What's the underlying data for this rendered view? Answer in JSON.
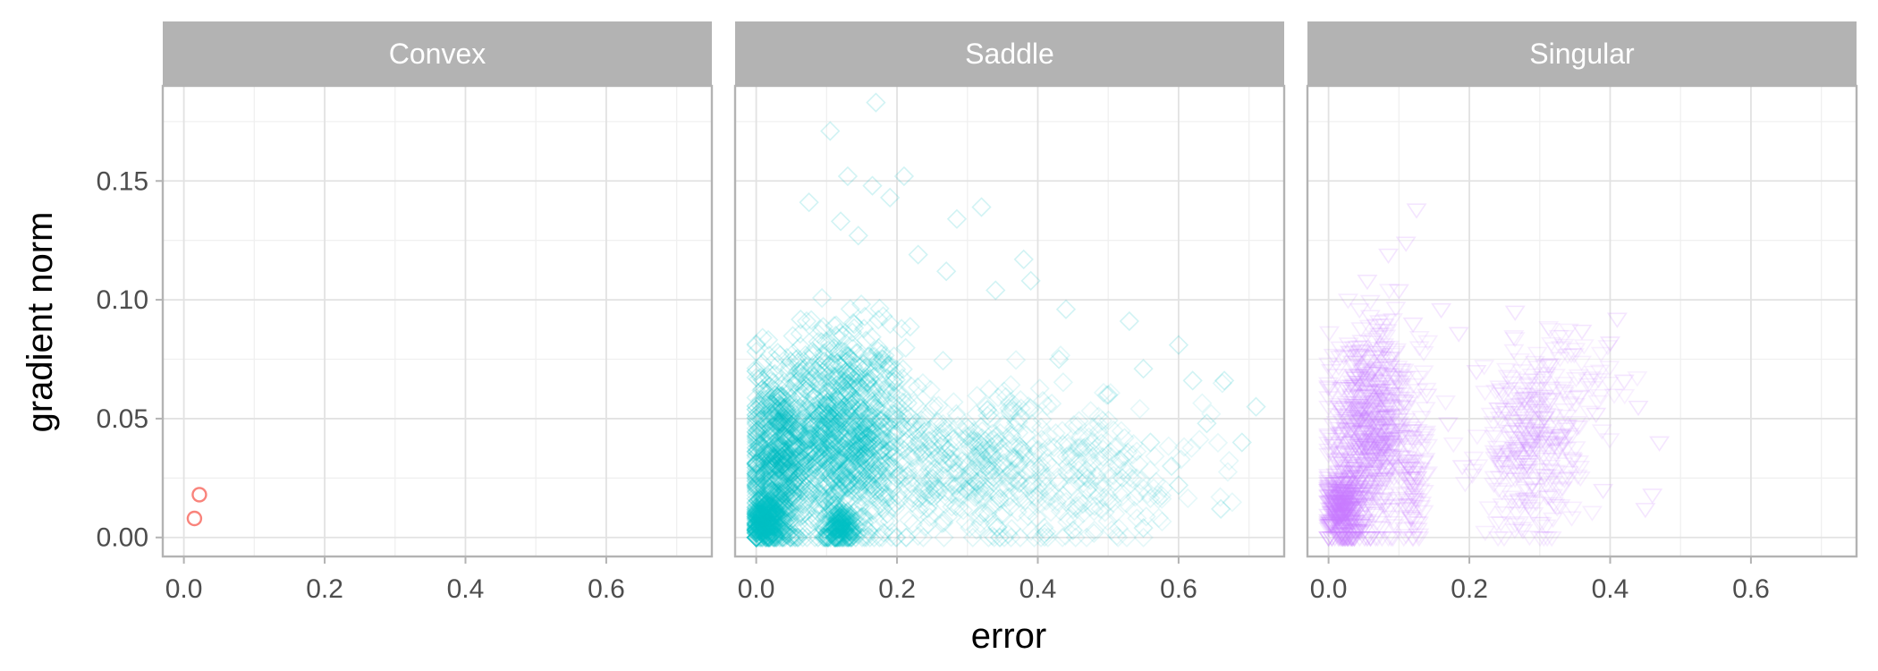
{
  "chart_data": {
    "type": "scatter",
    "xlabel": "error",
    "ylabel": "gradient norm",
    "xlim": [
      -0.03,
      0.75
    ],
    "ylim": [
      -0.008,
      0.19
    ],
    "x_ticks": [
      "0.0",
      "0.2",
      "0.4",
      "0.6"
    ],
    "x_tick_values": [
      0,
      0.2,
      0.4,
      0.6
    ],
    "y_ticks": [
      "0.00",
      "0.05",
      "0.10",
      "0.15"
    ],
    "y_tick_values": [
      0,
      0.05,
      0.1,
      0.15
    ],
    "grid": true,
    "panels": [
      {
        "label": "Convex",
        "color": "#F8766D",
        "marker": "circle",
        "point_opacity": 0.9,
        "points": [
          [
            0.015,
            0.008
          ],
          [
            0.022,
            0.018
          ]
        ],
        "clouds": []
      },
      {
        "label": "Saddle",
        "color": "#00BFC4",
        "marker": "diamond",
        "point_opacity": 0.18,
        "points": [
          [
            0.17,
            0.183
          ],
          [
            0.105,
            0.171
          ],
          [
            0.13,
            0.152
          ],
          [
            0.165,
            0.148
          ],
          [
            0.21,
            0.152
          ],
          [
            0.19,
            0.143
          ],
          [
            0.075,
            0.141
          ],
          [
            0.32,
            0.139
          ],
          [
            0.285,
            0.134
          ],
          [
            0.12,
            0.133
          ],
          [
            0.145,
            0.127
          ],
          [
            0.38,
            0.117
          ],
          [
            0.23,
            0.119
          ],
          [
            0.27,
            0.112
          ],
          [
            0.39,
            0.108
          ],
          [
            0.34,
            0.104
          ],
          [
            0.44,
            0.096
          ],
          [
            0.53,
            0.091
          ],
          [
            0.6,
            0.081
          ],
          [
            0.55,
            0.071
          ],
          [
            0.62,
            0.066
          ],
          [
            0.665,
            0.066
          ],
          [
            0.71,
            0.055
          ],
          [
            0.64,
            0.048
          ],
          [
            0.69,
            0.04
          ],
          [
            0.56,
            0.04
          ],
          [
            0.59,
            0.03
          ],
          [
            0.52,
            0.025
          ],
          [
            0.47,
            0.02
          ],
          [
            0.66,
            0.012
          ],
          [
            0.55,
            0.004
          ],
          [
            0.45,
            0.003
          ],
          [
            0.6,
            0.022
          ],
          [
            0.5,
            0.06
          ],
          [
            0.43,
            0.075
          ]
        ],
        "clouds": [
          {
            "cx": 0.1,
            "cy": 0.045,
            "sx": 0.055,
            "sy": 0.022,
            "n": 700,
            "opacity": 0.16
          },
          {
            "cx": 0.03,
            "cy": 0.03,
            "sx": 0.02,
            "sy": 0.018,
            "n": 500,
            "opacity": 0.18
          },
          {
            "cx": 0.13,
            "cy": 0.04,
            "sx": 0.04,
            "sy": 0.02,
            "n": 500,
            "opacity": 0.16
          },
          {
            "cx": 0.012,
            "cy": 0.007,
            "sx": 0.01,
            "sy": 0.005,
            "n": 300,
            "opacity": 0.22
          },
          {
            "cx": 0.12,
            "cy": 0.004,
            "sx": 0.012,
            "sy": 0.004,
            "n": 150,
            "opacity": 0.22
          },
          {
            "cx": 0.3,
            "cy": 0.03,
            "sx": 0.1,
            "sy": 0.016,
            "n": 500,
            "opacity": 0.12
          },
          {
            "cx": 0.48,
            "cy": 0.025,
            "sx": 0.08,
            "sy": 0.014,
            "n": 160,
            "opacity": 0.1
          }
        ]
      },
      {
        "label": "Singular",
        "color": "#C77CFF",
        "marker": "triangle-down",
        "point_opacity": 0.2,
        "points": [
          [
            0.125,
            0.138
          ],
          [
            0.085,
            0.119
          ],
          [
            0.11,
            0.124
          ],
          [
            0.055,
            0.108
          ],
          [
            0.1,
            0.104
          ],
          [
            0.16,
            0.096
          ],
          [
            0.185,
            0.086
          ],
          [
            0.265,
            0.095
          ],
          [
            0.41,
            0.092
          ],
          [
            0.4,
            0.082
          ],
          [
            0.36,
            0.087
          ],
          [
            0.42,
            0.066
          ],
          [
            0.44,
            0.055
          ],
          [
            0.47,
            0.04
          ],
          [
            0.46,
            0.018
          ],
          [
            0.45,
            0.012
          ],
          [
            0.39,
            0.02
          ],
          [
            0.38,
            0.052
          ],
          [
            0.21,
            0.07
          ],
          [
            0.17,
            0.048
          ],
          [
            0.19,
            0.03
          ],
          [
            0.08,
            0.08
          ],
          [
            0.14,
            0.06
          ],
          [
            0.12,
            0.09
          ]
        ],
        "clouds": [
          {
            "cx": 0.05,
            "cy": 0.04,
            "sx": 0.025,
            "sy": 0.02,
            "n": 500,
            "opacity": 0.16
          },
          {
            "cx": 0.02,
            "cy": 0.012,
            "sx": 0.012,
            "sy": 0.008,
            "n": 250,
            "opacity": 0.22
          },
          {
            "cx": 0.09,
            "cy": 0.05,
            "sx": 0.025,
            "sy": 0.02,
            "n": 200,
            "opacity": 0.14
          },
          {
            "cx": 0.12,
            "cy": 0.02,
            "sx": 0.01,
            "sy": 0.012,
            "n": 60,
            "opacity": 0.15
          },
          {
            "cx": 0.285,
            "cy": 0.035,
            "sx": 0.035,
            "sy": 0.018,
            "n": 260,
            "opacity": 0.14
          },
          {
            "cx": 0.33,
            "cy": 0.06,
            "sx": 0.045,
            "sy": 0.015,
            "n": 90,
            "opacity": 0.12
          }
        ]
      }
    ]
  }
}
